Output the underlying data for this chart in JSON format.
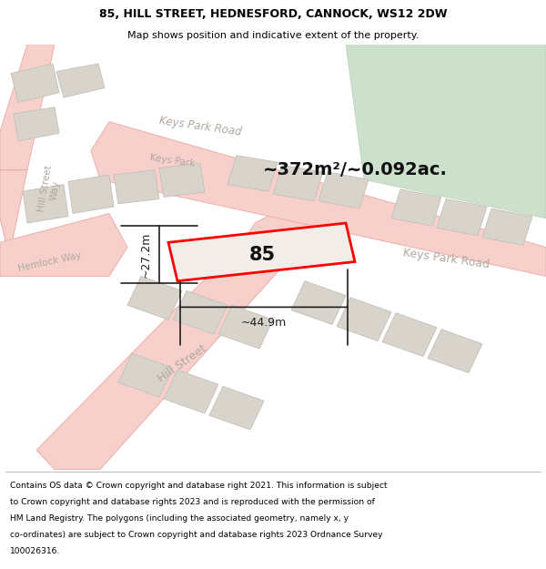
{
  "title_line1": "85, HILL STREET, HEDNESFORD, CANNOCK, WS12 2DW",
  "title_line2": "Map shows position and indicative extent of the property.",
  "area_label": "~372m²/~0.092ac.",
  "number_label": "85",
  "width_label": "~44.9m",
  "height_label": "~27.2m",
  "map_bg": "#f2ede8",
  "road_fill": "#f7d0cc",
  "road_stroke": "#e8a8a4",
  "building_fill": "#d8d4cc",
  "building_stroke": "#c4c0b8",
  "green_fill": "#cce0cc",
  "green_stroke": "#b8d0b8",
  "highlight_stroke": "#ff0000",
  "road_label_color": "#b0a8a0",
  "dim_line_color": "#202020",
  "title_color": "#000000",
  "footer_color": "#000000",
  "footer_lines": [
    "Contains OS data © Crown copyright and database right 2021. This information is subject",
    "to Crown copyright and database rights 2023 and is reproduced with the permission of",
    "HM Land Registry. The polygons (including the associated geometry, namely x, y",
    "co-ordinates) are subject to Crown copyright and database rights 2023 Ordnance Survey",
    "100026316."
  ]
}
